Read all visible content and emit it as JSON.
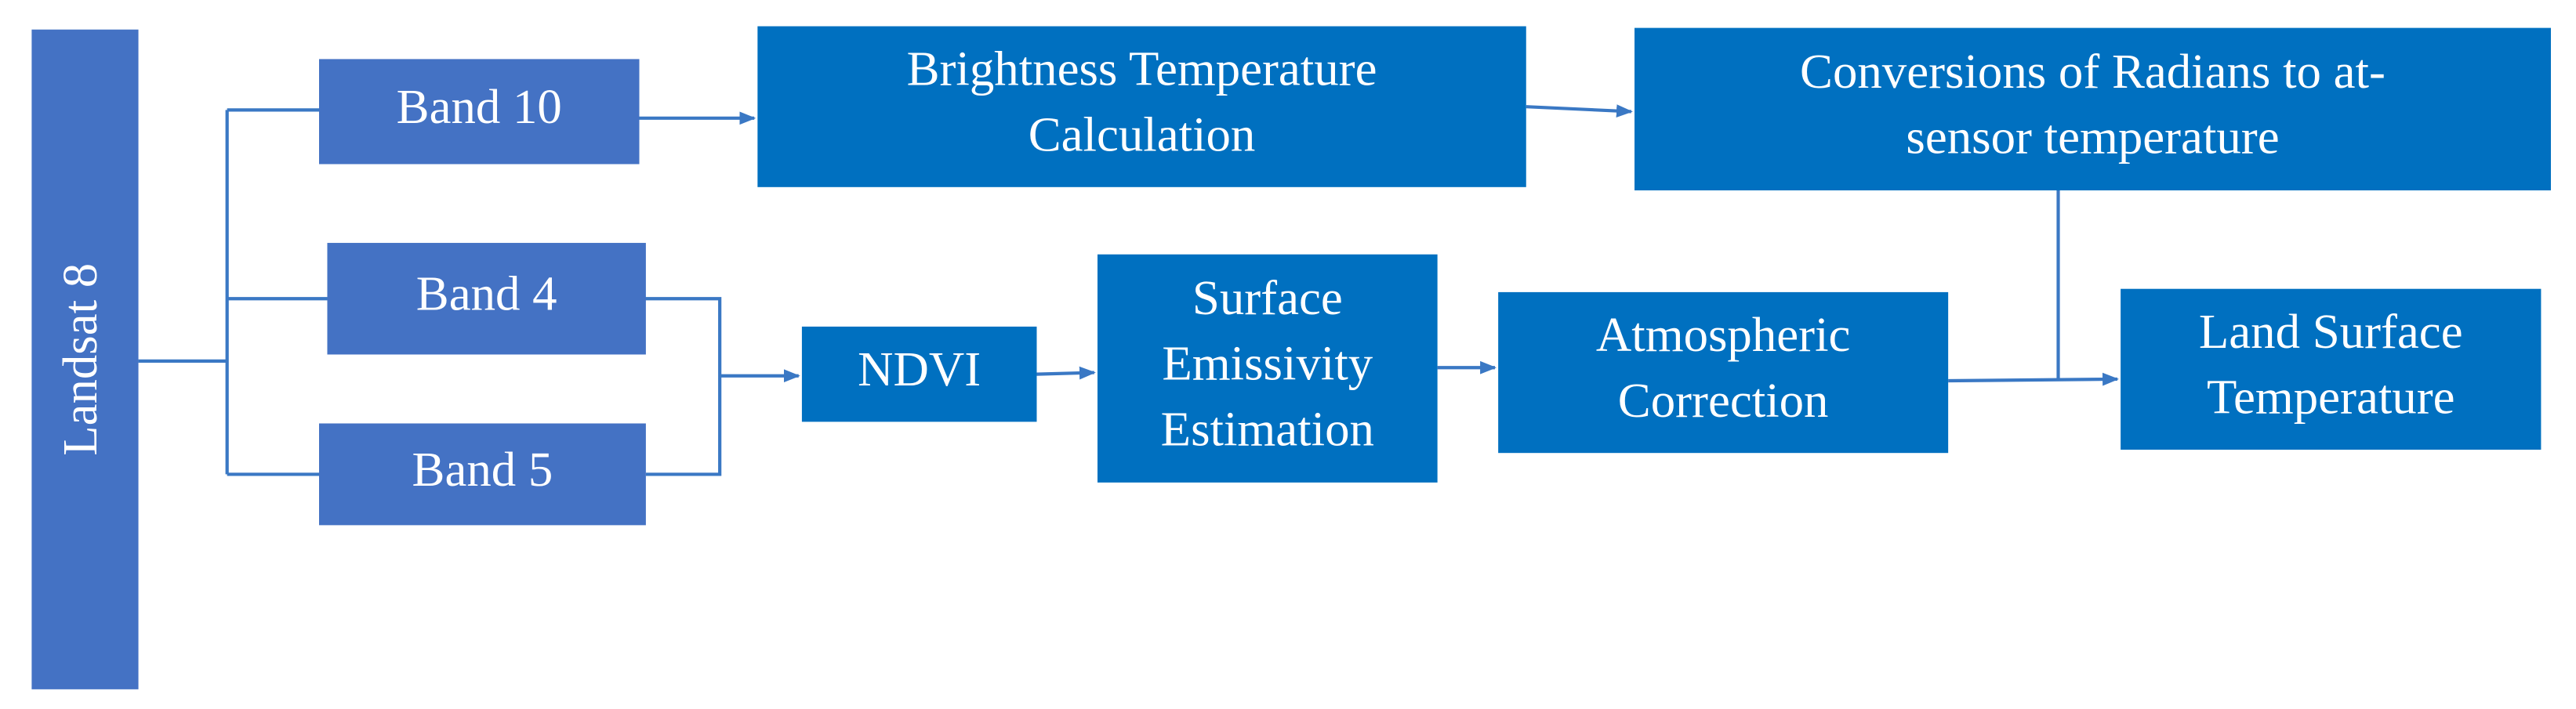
{
  "nodes": [
    {
      "lines": [
        "Landsat 8"
      ]
    },
    {
      "lines": [
        "Band 10"
      ]
    },
    {
      "lines": [
        "Band 4"
      ]
    },
    {
      "lines": [
        "Band 5"
      ]
    },
    {
      "lines": [
        "Brightness Temperature",
        "Calculation"
      ]
    },
    {
      "lines": [
        "Conversions of Radians to at-",
        "sensor temperature"
      ]
    },
    {
      "lines": [
        "NDVI"
      ]
    },
    {
      "lines": [
        "Surface",
        "Emissivity",
        "Estimation"
      ]
    },
    {
      "lines": [
        "Atmospheric",
        "Correction"
      ]
    },
    {
      "lines": [
        "Land Surface",
        "Temperature"
      ]
    }
  ]
}
